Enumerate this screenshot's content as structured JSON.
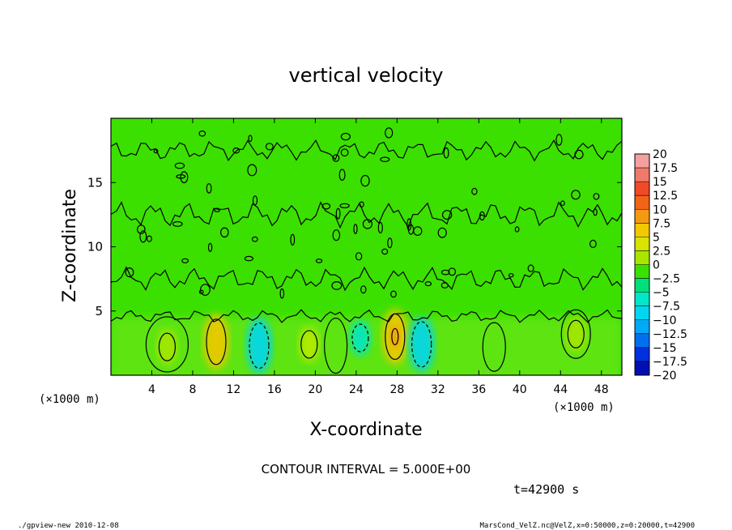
{
  "chart_data": {
    "type": "heatmap",
    "title": "vertical velocity",
    "xlabel": "X-coordinate",
    "ylabel": "Z-coordinate",
    "x_unit_left": "(×1000 m)",
    "x_unit_right": "(×1000 m)",
    "xlim": [
      0,
      50
    ],
    "ylim": [
      0,
      20
    ],
    "x_ticks": [
      4,
      8,
      12,
      16,
      20,
      24,
      28,
      32,
      36,
      40,
      44,
      48
    ],
    "y_ticks": [
      5,
      10,
      15
    ],
    "contour_interval_text": "CONTOUR INTERVAL = 5.000E+00",
    "time_text": "t=42900 s",
    "colorbar": {
      "levels": [
        "20",
        "17.5",
        "15",
        "12.5",
        "10",
        "7.5",
        "5",
        "2.5",
        "0",
        "−2.5",
        "−5",
        "−7.5",
        "−10",
        "−12.5",
        "−15",
        "−17.5",
        "−20"
      ],
      "colors": [
        "#f5a0a0",
        "#f07a6a",
        "#f04a28",
        "#f26418",
        "#f49a10",
        "#f2c800",
        "#d6e400",
        "#a8e600",
        "#3ce000",
        "#00e07a",
        "#00e6c8",
        "#00d6f0",
        "#00aaf6",
        "#0070f0",
        "#0030e0",
        "#0010b0",
        "#6a00c8"
      ]
    },
    "background_color": "#3ce000",
    "features": [
      {
        "x": 10.3,
        "z": 2.6,
        "value": 7.5,
        "color": "#f2c800"
      },
      {
        "x": 14.5,
        "z": 2.3,
        "value": -7.5,
        "color": "#00d6f0"
      },
      {
        "x": 19.4,
        "z": 2.4,
        "value": 5,
        "color": "#b8ea00"
      },
      {
        "x": 24.4,
        "z": 2.9,
        "value": -5,
        "color": "#00e6c8"
      },
      {
        "x": 27.8,
        "z": 3.0,
        "value": 10,
        "color": "#f2c800"
      },
      {
        "x": 30.4,
        "z": 2.4,
        "value": -7.5,
        "color": "#00d6f0"
      },
      {
        "x": 5.5,
        "z": 2.2,
        "value": 2.5,
        "color": "#a8e600"
      },
      {
        "x": 45.5,
        "z": 3.2,
        "value": 2.5,
        "color": "#a8e600"
      }
    ]
  },
  "footer_left": "./gpview-new  2010-12-08",
  "footer_right": "MarsCond_VelZ.nc@VelZ,x=0:50000,z=0:20000,t=42900"
}
